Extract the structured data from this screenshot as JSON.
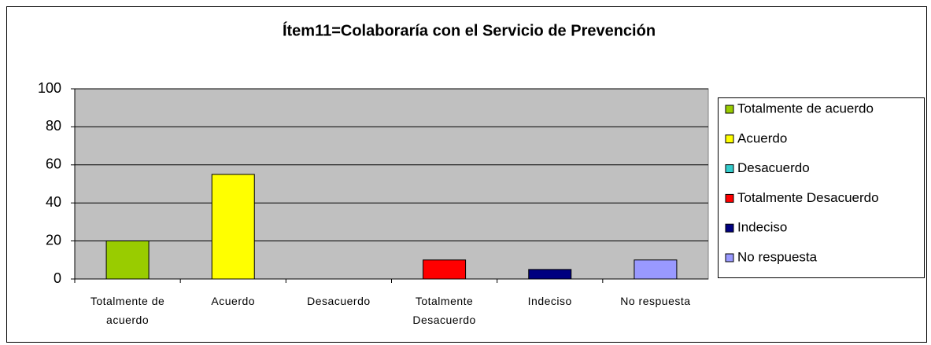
{
  "chart_data": {
    "type": "bar",
    "title": "Ítem11=Colaboraría con el Servicio de Prevención",
    "categories": [
      "Totalmente de acuerdo",
      "Acuerdo",
      "Desacuerdo",
      "Totalmente Desacuerdo",
      "Indeciso",
      "No respuesta"
    ],
    "values": [
      20,
      55,
      0,
      10,
      5,
      10
    ],
    "colors": [
      "#99cc00",
      "#ffff00",
      "#33cccc",
      "#ff0000",
      "#000080",
      "#9999ff"
    ],
    "ylim": [
      0,
      100
    ],
    "yticks": [
      0,
      20,
      40,
      60,
      80,
      100
    ],
    "grid": true,
    "legend": "right"
  }
}
